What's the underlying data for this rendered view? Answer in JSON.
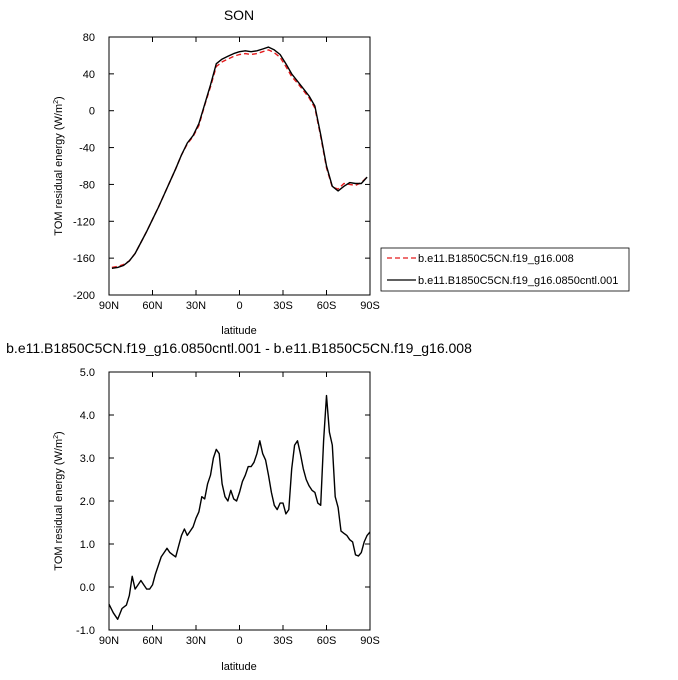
{
  "chart_data": [
    {
      "type": "line",
      "title": "SON",
      "xlabel": "latitude",
      "ylabel": "TOM residual energy (W/m",
      "ylabel_sup": "2",
      "ylabel_close": ")",
      "xlim": [
        90,
        -90
      ],
      "ylim": [
        -200,
        80
      ],
      "x_ticks": [
        90,
        60,
        30,
        0,
        -30,
        -60,
        -90
      ],
      "x_tick_labels": [
        "90N",
        "60N",
        "30N",
        "0",
        "30S",
        "60S",
        "90S"
      ],
      "y_ticks": [
        -200,
        -160,
        -120,
        -80,
        -40,
        0,
        40,
        80
      ],
      "y_tick_labels": [
        "-200",
        "-160",
        "-120",
        "-80",
        "-40",
        "0",
        "40",
        "80"
      ],
      "grid": false,
      "legend_position": "right-outside",
      "series": [
        {
          "name": "b.e11.B1850C5CN.f19_g16.008",
          "color": "#e41a1c",
          "dash": "dashed",
          "x": [
            88,
            84,
            80,
            76,
            72,
            68,
            64,
            60,
            56,
            52,
            48,
            44,
            40,
            36,
            32,
            28,
            24,
            20,
            16,
            12,
            8,
            4,
            0,
            -4,
            -8,
            -12,
            -16,
            -20,
            -24,
            -28,
            -32,
            -36,
            -40,
            -44,
            -48,
            -52,
            -56,
            -60,
            -64,
            -68,
            -72,
            -76,
            -80,
            -84,
            -88
          ],
          "y": [
            -170,
            -169,
            -167,
            -163,
            -155,
            -143,
            -131,
            -118,
            -105,
            -91,
            -77,
            -63,
            -48,
            -36,
            -28,
            -16,
            6,
            26,
            48,
            53,
            56,
            59,
            61,
            62,
            61,
            62,
            64,
            66,
            63,
            58,
            48,
            37,
            30,
            22,
            14,
            3,
            -28,
            -62,
            -83,
            -85,
            -79,
            -80,
            -81,
            -78,
            -72
          ]
        },
        {
          "name": "b.e11.B1850C5CN.f19_g16.0850cntl.001",
          "color": "#000000",
          "dash": "solid",
          "x": [
            88,
            84,
            80,
            76,
            72,
            68,
            64,
            60,
            56,
            52,
            48,
            44,
            40,
            36,
            32,
            28,
            24,
            20,
            16,
            12,
            8,
            4,
            0,
            -4,
            -8,
            -12,
            -16,
            -20,
            -24,
            -28,
            -32,
            -36,
            -40,
            -44,
            -48,
            -52,
            -56,
            -60,
            -64,
            -68,
            -72,
            -76,
            -80,
            -84,
            -88
          ],
          "y": [
            -171,
            -170,
            -168,
            -163,
            -155,
            -143,
            -131,
            -118,
            -105,
            -91,
            -77,
            -63,
            -48,
            -35,
            -27,
            -14,
            7,
            28,
            51,
            56,
            59,
            62,
            64,
            65,
            64,
            65,
            67,
            69,
            66,
            61,
            51,
            40,
            32,
            24,
            16,
            5,
            -26,
            -60,
            -82,
            -87,
            -82,
            -78,
            -79,
            -79,
            -72
          ]
        }
      ]
    },
    {
      "type": "line",
      "title": "b.e11.B1850C5CN.f19_g16.0850cntl.001 - b.e11.B1850C5CN.f19_g16.008",
      "xlabel": "latitude",
      "ylabel": "TOM residual energy (W/m",
      "ylabel_sup": "2",
      "ylabel_close": ")",
      "xlim": [
        90,
        -90
      ],
      "ylim": [
        -1.0,
        5.0
      ],
      "x_ticks": [
        90,
        60,
        30,
        0,
        -30,
        -60,
        -90
      ],
      "x_tick_labels": [
        "90N",
        "60N",
        "30N",
        "0",
        "30S",
        "60S",
        "90S"
      ],
      "y_ticks": [
        -1.0,
        0.0,
        1.0,
        2.0,
        3.0,
        4.0,
        5.0
      ],
      "y_tick_labels": [
        "-1.0",
        "0.0",
        "1.0",
        "2.0",
        "3.0",
        "4.0",
        "5.0"
      ],
      "grid": false,
      "series": [
        {
          "color": "#000000",
          "dash": "solid",
          "x": [
            90,
            87,
            84,
            81,
            78,
            76,
            74,
            72,
            70,
            68,
            66,
            64,
            62,
            60,
            58,
            56,
            54,
            52,
            50,
            48,
            46,
            44,
            42,
            40,
            38,
            36,
            34,
            32,
            30,
            28,
            26,
            24,
            22,
            20,
            18,
            16,
            14,
            12,
            10,
            8,
            6,
            4,
            2,
            0,
            -2,
            -4,
            -6,
            -8,
            -10,
            -12,
            -14,
            -16,
            -18,
            -20,
            -22,
            -24,
            -26,
            -28,
            -30,
            -32,
            -34,
            -36,
            -38,
            -40,
            -42,
            -44,
            -46,
            -48,
            -50,
            -52,
            -54,
            -56,
            -58,
            -60,
            -62,
            -64,
            -66,
            -68,
            -70,
            -72,
            -74,
            -76,
            -78,
            -80,
            -82,
            -84,
            -86,
            -88,
            -90
          ],
          "y": [
            -0.4,
            -0.6,
            -0.75,
            -0.5,
            -0.42,
            -0.2,
            0.25,
            -0.05,
            0.05,
            0.15,
            0.05,
            -0.05,
            -0.05,
            0.05,
            0.3,
            0.5,
            0.7,
            0.8,
            0.9,
            0.8,
            0.75,
            0.7,
            0.95,
            1.2,
            1.35,
            1.2,
            1.3,
            1.4,
            1.6,
            1.75,
            2.1,
            2.05,
            2.4,
            2.6,
            3.0,
            3.2,
            3.1,
            2.4,
            2.1,
            2.0,
            2.25,
            2.05,
            2.0,
            2.2,
            2.45,
            2.6,
            2.8,
            2.8,
            2.9,
            3.1,
            3.4,
            3.1,
            2.95,
            2.6,
            2.2,
            1.9,
            1.8,
            1.95,
            1.95,
            1.7,
            1.8,
            2.75,
            3.3,
            3.4,
            3.1,
            2.75,
            2.5,
            2.35,
            2.25,
            2.2,
            1.95,
            1.9,
            3.4,
            4.45,
            3.6,
            3.3,
            2.1,
            1.85,
            1.3,
            1.25,
            1.2,
            1.1,
            1.05,
            0.75,
            0.72,
            0.8,
            1.05,
            1.2,
            1.28
          ]
        }
      ]
    }
  ]
}
